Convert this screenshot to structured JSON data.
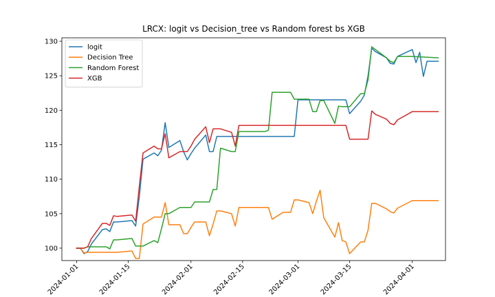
{
  "chart_data": {
    "type": "line",
    "title": "LRCX: logit vs Decision_tree vs Random forest bs XGB",
    "xlabel": "",
    "ylabel": "",
    "xlim": [
      "2023-12-28",
      "2024-04-10"
    ],
    "ylim": [
      98.2,
      130.5
    ],
    "x_ticks": [
      "2024-01-01",
      "2024-01-15",
      "2024-02-01",
      "2024-02-15",
      "2024-03-01",
      "2024-03-15",
      "2024-04-01"
    ],
    "y_ticks": [
      100,
      105,
      110,
      115,
      120,
      125,
      130
    ],
    "grid": false,
    "legend_position": "upper-left",
    "series": [
      {
        "name": "logit",
        "color": "#1f77b4",
        "points": [
          [
            "2024-01-01",
            100.0
          ],
          [
            "2024-01-02",
            100.0
          ],
          [
            "2024-01-03",
            99.2
          ],
          [
            "2024-01-04",
            99.5
          ],
          [
            "2024-01-05",
            100.6
          ],
          [
            "2024-01-08",
            102.7
          ],
          [
            "2024-01-09",
            102.8
          ],
          [
            "2024-01-10",
            102.4
          ],
          [
            "2024-01-11",
            103.8
          ],
          [
            "2024-01-12",
            103.8
          ],
          [
            "2024-01-16",
            104.0
          ],
          [
            "2024-01-17",
            103.2
          ],
          [
            "2024-01-18",
            107.5
          ],
          [
            "2024-01-19",
            112.9
          ],
          [
            "2024-01-22",
            113.8
          ],
          [
            "2024-01-23",
            113.4
          ],
          [
            "2024-01-24",
            114.2
          ],
          [
            "2024-01-25",
            118.2
          ],
          [
            "2024-01-26",
            114.6
          ],
          [
            "2024-01-29",
            115.6
          ],
          [
            "2024-01-30",
            114.0
          ],
          [
            "2024-01-31",
            112.8
          ],
          [
            "2024-02-01",
            113.7
          ],
          [
            "2024-02-02",
            114.5
          ],
          [
            "2024-02-05",
            116.4
          ],
          [
            "2024-02-06",
            114.0
          ],
          [
            "2024-02-07",
            114.0
          ],
          [
            "2024-02-08",
            116.2
          ],
          [
            "2024-02-09",
            116.2
          ],
          [
            "2024-02-12",
            116.2
          ],
          [
            "2024-02-13",
            116.2
          ],
          [
            "2024-02-29",
            116.2
          ],
          [
            "2024-03-01",
            121.5
          ],
          [
            "2024-03-13",
            121.5
          ],
          [
            "2024-03-14",
            121.5
          ],
          [
            "2024-03-15",
            119.5
          ],
          [
            "2024-03-18",
            121.3
          ],
          [
            "2024-03-19",
            122.2
          ],
          [
            "2024-03-20",
            125.0
          ],
          [
            "2024-03-21",
            129.0
          ],
          [
            "2024-03-22",
            128.5
          ],
          [
            "2024-03-25",
            127.6
          ],
          [
            "2024-03-26",
            126.8
          ],
          [
            "2024-03-27",
            126.7
          ],
          [
            "2024-03-28",
            127.8
          ],
          [
            "2024-04-01",
            128.8
          ],
          [
            "2024-04-02",
            126.9
          ],
          [
            "2024-04-03",
            128.4
          ],
          [
            "2024-04-04",
            124.9
          ],
          [
            "2024-04-05",
            127.1
          ],
          [
            "2024-04-08",
            127.1
          ]
        ]
      },
      {
        "name": "Decision Tree",
        "color": "#ff7f0e",
        "points": [
          [
            "2024-01-01",
            100.0
          ],
          [
            "2024-01-02",
            100.0
          ],
          [
            "2024-01-03",
            99.3
          ],
          [
            "2024-01-04",
            99.4
          ],
          [
            "2024-01-05",
            99.4
          ],
          [
            "2024-01-08",
            99.4
          ],
          [
            "2024-01-09",
            99.4
          ],
          [
            "2024-01-10",
            99.4
          ],
          [
            "2024-01-11",
            99.4
          ],
          [
            "2024-01-12",
            99.4
          ],
          [
            "2024-01-16",
            99.6
          ],
          [
            "2024-01-17",
            98.5
          ],
          [
            "2024-01-18",
            98.5
          ],
          [
            "2024-01-19",
            103.5
          ],
          [
            "2024-01-22",
            104.5
          ],
          [
            "2024-01-23",
            104.5
          ],
          [
            "2024-01-24",
            104.5
          ],
          [
            "2024-01-25",
            106.6
          ],
          [
            "2024-01-26",
            103.4
          ],
          [
            "2024-01-29",
            103.4
          ],
          [
            "2024-01-30",
            102.1
          ],
          [
            "2024-01-31",
            102.1
          ],
          [
            "2024-02-01",
            103.0
          ],
          [
            "2024-02-02",
            103.8
          ],
          [
            "2024-02-05",
            103.8
          ],
          [
            "2024-02-06",
            101.8
          ],
          [
            "2024-02-07",
            103.5
          ],
          [
            "2024-02-08",
            105.4
          ],
          [
            "2024-02-09",
            105.4
          ],
          [
            "2024-02-12",
            105.0
          ],
          [
            "2024-02-13",
            103.2
          ],
          [
            "2024-02-14",
            105.9
          ],
          [
            "2024-02-22",
            105.9
          ],
          [
            "2024-02-23",
            104.2
          ],
          [
            "2024-02-26",
            105.2
          ],
          [
            "2024-02-27",
            105.2
          ],
          [
            "2024-02-28",
            105.2
          ],
          [
            "2024-02-29",
            107.0
          ],
          [
            "2024-03-01",
            107.0
          ],
          [
            "2024-03-04",
            106.6
          ],
          [
            "2024-03-05",
            105.0
          ],
          [
            "2024-03-06",
            106.8
          ],
          [
            "2024-03-07",
            108.4
          ],
          [
            "2024-03-08",
            104.4
          ],
          [
            "2024-03-11",
            101.6
          ],
          [
            "2024-03-12",
            103.7
          ],
          [
            "2024-03-13",
            101.1
          ],
          [
            "2024-03-14",
            100.9
          ],
          [
            "2024-03-15",
            99.2
          ],
          [
            "2024-03-18",
            100.9
          ],
          [
            "2024-03-19",
            100.9
          ],
          [
            "2024-03-20",
            102.6
          ],
          [
            "2024-03-21",
            106.5
          ],
          [
            "2024-03-22",
            106.5
          ],
          [
            "2024-03-25",
            105.7
          ],
          [
            "2024-03-26",
            105.3
          ],
          [
            "2024-03-27",
            105.1
          ],
          [
            "2024-03-28",
            105.8
          ],
          [
            "2024-04-01",
            106.9
          ],
          [
            "2024-04-08",
            106.9
          ]
        ]
      },
      {
        "name": "Random Forest",
        "color": "#2ca02c",
        "points": [
          [
            "2024-01-01",
            100.0
          ],
          [
            "2024-01-02",
            100.0
          ],
          [
            "2024-01-03",
            100.0
          ],
          [
            "2024-01-04",
            100.2
          ],
          [
            "2024-01-05",
            100.2
          ],
          [
            "2024-01-08",
            100.2
          ],
          [
            "2024-01-09",
            100.2
          ],
          [
            "2024-01-10",
            99.9
          ],
          [
            "2024-01-11",
            101.2
          ],
          [
            "2024-01-12",
            101.2
          ],
          [
            "2024-01-16",
            101.4
          ],
          [
            "2024-01-17",
            100.3
          ],
          [
            "2024-01-18",
            100.3
          ],
          [
            "2024-01-19",
            100.3
          ],
          [
            "2024-01-22",
            101.1
          ],
          [
            "2024-01-23",
            100.8
          ],
          [
            "2024-01-24",
            102.8
          ],
          [
            "2024-01-25",
            105.0
          ],
          [
            "2024-01-26",
            105.0
          ],
          [
            "2024-01-29",
            105.9
          ],
          [
            "2024-01-30",
            105.9
          ],
          [
            "2024-01-31",
            105.9
          ],
          [
            "2024-02-01",
            105.9
          ],
          [
            "2024-02-02",
            106.7
          ],
          [
            "2024-02-05",
            106.7
          ],
          [
            "2024-02-06",
            106.7
          ],
          [
            "2024-02-07",
            108.5
          ],
          [
            "2024-02-08",
            108.5
          ],
          [
            "2024-02-09",
            114.5
          ],
          [
            "2024-02-12",
            114.0
          ],
          [
            "2024-02-13",
            114.0
          ],
          [
            "2024-02-14",
            116.9
          ],
          [
            "2024-02-21",
            116.9
          ],
          [
            "2024-02-22",
            117.1
          ],
          [
            "2024-02-23",
            122.6
          ],
          [
            "2024-02-27",
            122.6
          ],
          [
            "2024-02-28",
            122.6
          ],
          [
            "2024-02-29",
            121.6
          ],
          [
            "2024-03-01",
            121.6
          ],
          [
            "2024-03-04",
            121.6
          ],
          [
            "2024-03-05",
            119.8
          ],
          [
            "2024-03-06",
            119.8
          ],
          [
            "2024-03-07",
            121.4
          ],
          [
            "2024-03-08",
            121.4
          ],
          [
            "2024-03-11",
            118.1
          ],
          [
            "2024-03-12",
            120.6
          ],
          [
            "2024-03-13",
            120.5
          ],
          [
            "2024-03-14",
            120.5
          ],
          [
            "2024-03-15",
            120.5
          ],
          [
            "2024-03-18",
            122.4
          ],
          [
            "2024-03-19",
            122.4
          ],
          [
            "2024-03-20",
            124.4
          ],
          [
            "2024-03-21",
            129.2
          ],
          [
            "2024-03-22",
            128.8
          ],
          [
            "2024-03-25",
            127.6
          ],
          [
            "2024-03-26",
            127.1
          ],
          [
            "2024-03-27",
            126.9
          ],
          [
            "2024-03-28",
            127.8
          ],
          [
            "2024-04-01",
            127.8
          ],
          [
            "2024-04-08",
            127.6
          ]
        ]
      },
      {
        "name": "XGB",
        "color": "#d62728",
        "points": [
          [
            "2024-01-01",
            100.0
          ],
          [
            "2024-01-02",
            100.0
          ],
          [
            "2024-01-03",
            100.0
          ],
          [
            "2024-01-04",
            100.2
          ],
          [
            "2024-01-05",
            101.4
          ],
          [
            "2024-01-08",
            103.6
          ],
          [
            "2024-01-09",
            103.6
          ],
          [
            "2024-01-10",
            103.3
          ],
          [
            "2024-01-11",
            104.7
          ],
          [
            "2024-01-12",
            104.6
          ],
          [
            "2024-01-16",
            104.8
          ],
          [
            "2024-01-17",
            103.9
          ],
          [
            "2024-01-18",
            109.0
          ],
          [
            "2024-01-19",
            113.8
          ],
          [
            "2024-01-22",
            114.8
          ],
          [
            "2024-01-23",
            114.4
          ],
          [
            "2024-01-24",
            114.4
          ],
          [
            "2024-01-25",
            116.6
          ],
          [
            "2024-01-26",
            113.1
          ],
          [
            "2024-01-29",
            114.0
          ],
          [
            "2024-01-30",
            114.0
          ],
          [
            "2024-01-31",
            114.0
          ],
          [
            "2024-02-01",
            114.8
          ],
          [
            "2024-02-02",
            115.8
          ],
          [
            "2024-02-05",
            117.6
          ],
          [
            "2024-02-06",
            115.3
          ],
          [
            "2024-02-07",
            117.3
          ],
          [
            "2024-02-08",
            117.3
          ],
          [
            "2024-02-09",
            117.3
          ],
          [
            "2024-02-12",
            116.8
          ],
          [
            "2024-02-13",
            114.8
          ],
          [
            "2024-02-14",
            117.8
          ],
          [
            "2024-03-14",
            117.8
          ],
          [
            "2024-03-15",
            115.8
          ],
          [
            "2024-03-18",
            115.8
          ],
          [
            "2024-03-19",
            115.8
          ],
          [
            "2024-03-20",
            115.8
          ],
          [
            "2024-03-21",
            119.9
          ],
          [
            "2024-03-22",
            119.4
          ],
          [
            "2024-03-25",
            118.7
          ],
          [
            "2024-03-26",
            118.1
          ],
          [
            "2024-03-27",
            117.9
          ],
          [
            "2024-03-28",
            118.6
          ],
          [
            "2024-04-01",
            119.8
          ],
          [
            "2024-04-08",
            119.8
          ]
        ]
      }
    ]
  }
}
